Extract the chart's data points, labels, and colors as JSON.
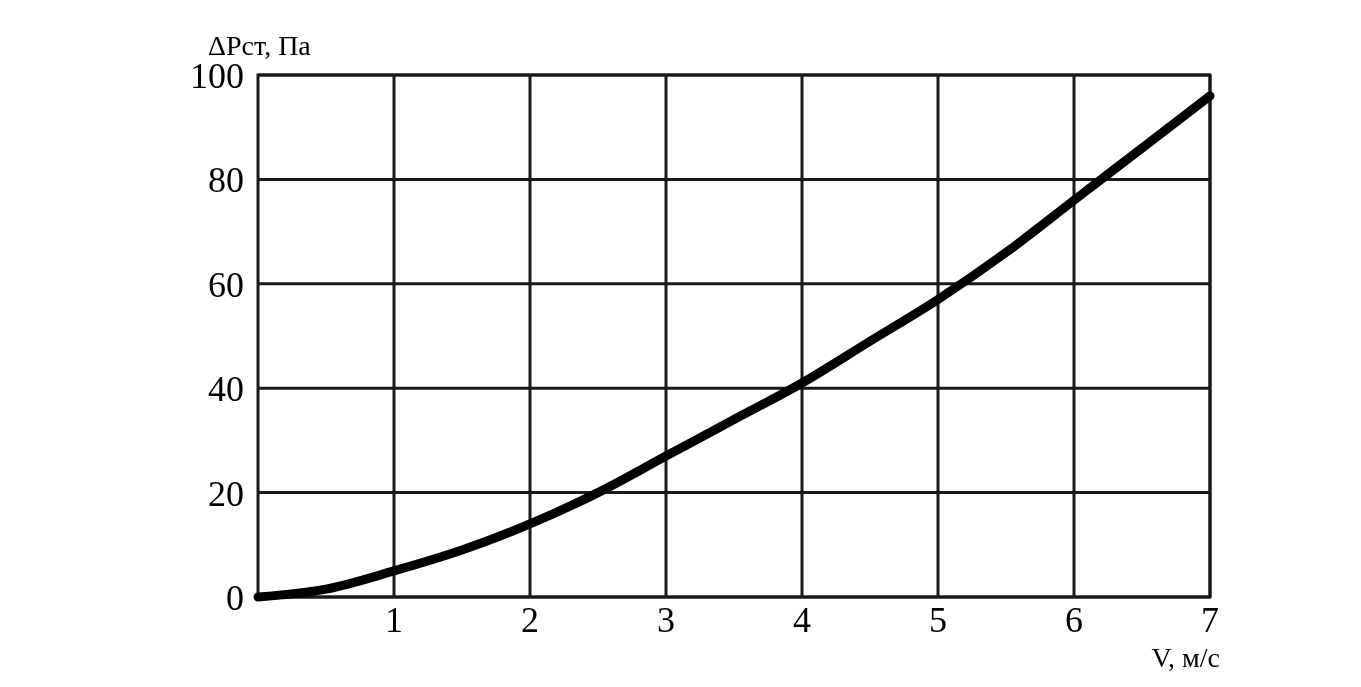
{
  "chart_data": {
    "type": "line",
    "xlabel": "V, м/с",
    "ylabel": "ΔPст, Па",
    "x": [
      0,
      0.5,
      1,
      1.5,
      2,
      2.5,
      3,
      3.5,
      4,
      4.5,
      5,
      5.5,
      6,
      6.5,
      7
    ],
    "series": [
      {
        "color": "#000000",
        "values": [
          0,
          1.5,
          5,
          9,
          14,
          20,
          27,
          34,
          41,
          49,
          57,
          66,
          76,
          86,
          96
        ]
      }
    ],
    "xlim": [
      0,
      7
    ],
    "xticks": [
      1,
      2,
      3,
      4,
      5,
      6,
      7
    ],
    "ylim": [
      0,
      100
    ],
    "yticks": [
      0,
      20,
      40,
      60,
      80,
      100
    ],
    "grid": true,
    "marker": "none",
    "line_style": "solid"
  }
}
